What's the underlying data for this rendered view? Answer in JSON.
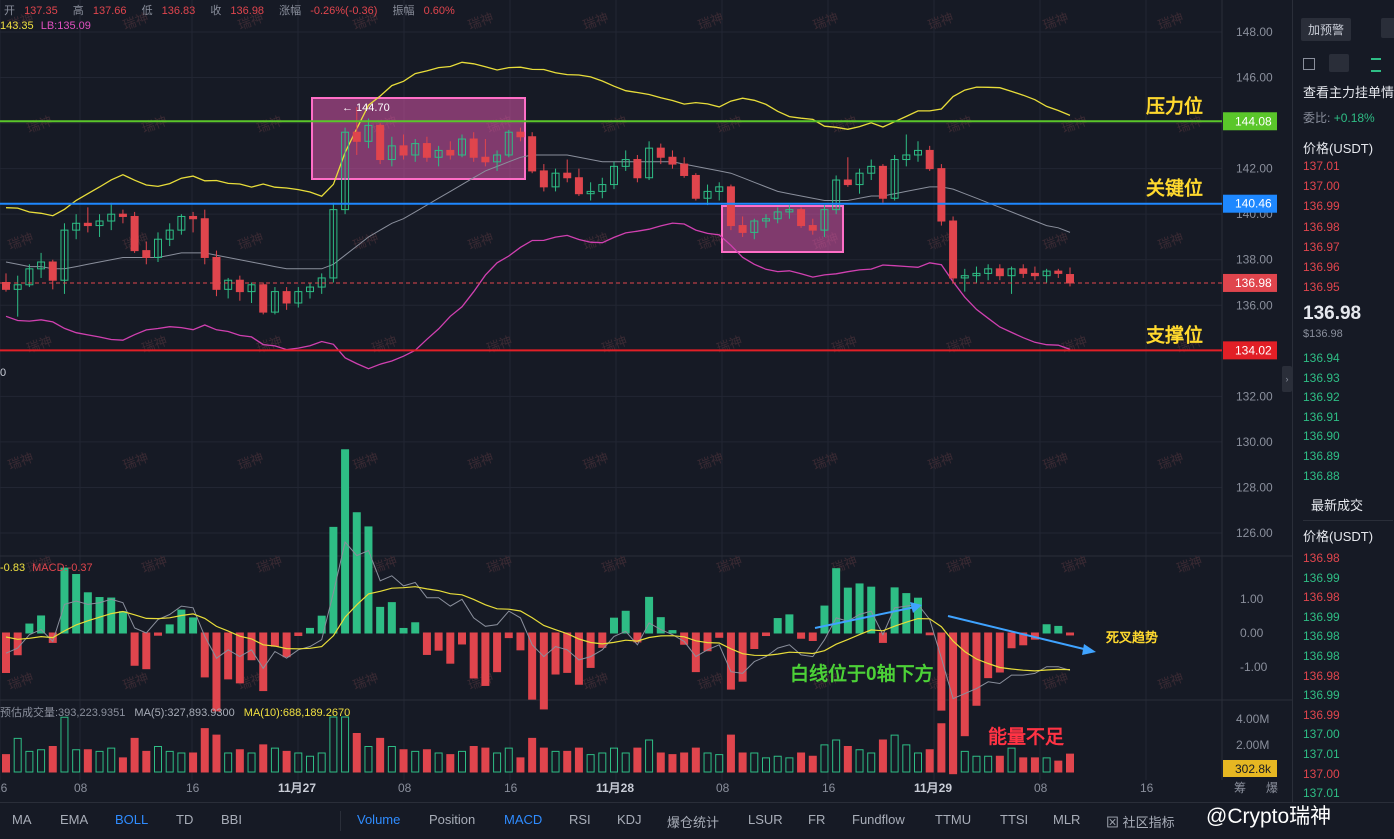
{
  "top_info": {
    "open_label": "开",
    "open": "137.35",
    "high_label": "高",
    "high": "137.66",
    "low_label": "低",
    "low": "136.83",
    "close_label": "收",
    "close": "136.98",
    "change_label": "涨幅",
    "change": "-0.26%(-0.36)",
    "amp_label": "振幅",
    "amp": "0.60%"
  },
  "boll_legend": {
    "ub": "143.35",
    "lb": "LB:135.09"
  },
  "macd_legend": {
    "dif": "-0.83",
    "macd": "MACD:-0.37"
  },
  "vol_legend": {
    "est": "预估成交量:393,223.9351",
    "ma5": "MA(5):327,893.9300",
    "ma10": "MA(10):688,189.2670"
  },
  "left_stub": "0",
  "chart_data": {
    "type": "candlestick",
    "price_axis": {
      "min": 126,
      "max": 148,
      "ticks": [
        "148.00",
        "146.00",
        "144.00",
        "142.00",
        "140.00",
        "138.00",
        "136.00",
        "132.00",
        "130.00",
        "128.00",
        "126.00"
      ]
    },
    "macd_axis": {
      "ticks": [
        "1.00",
        "0.00",
        "-1.00"
      ]
    },
    "volume_axis": {
      "ticks": [
        "4.00M",
        "2.00M"
      ]
    },
    "time_labels": [
      "16",
      "08",
      "16",
      "11月27",
      "08",
      "16",
      "11月28",
      "08",
      "16",
      "11月29",
      "08",
      "16"
    ],
    "levels": [
      {
        "name": "压力位",
        "value": 144.08,
        "label": "144.08",
        "color": "#5ac62a"
      },
      {
        "name": "关键位",
        "value": 140.46,
        "label": "140.46",
        "color": "#1e88ff"
      },
      {
        "name": "支撑位",
        "value": 134.02,
        "label": "134.02",
        "color": "#e21f26"
      }
    ],
    "current_price": {
      "value": 136.98,
      "label": "136.98"
    },
    "volume_current": "302.8k",
    "high_marker": "← 144.70",
    "annotations": {
      "death_cross": "死叉趋势",
      "white_line": "白线位于0轴下方",
      "low_energy": "能量不足"
    },
    "candles": [
      [
        137.0,
        137.4,
        136.6,
        136.7
      ],
      [
        136.7,
        137.3,
        135.5,
        136.9
      ],
      [
        136.9,
        137.8,
        136.8,
        137.6
      ],
      [
        137.6,
        138.3,
        137.2,
        137.9
      ],
      [
        137.9,
        138.0,
        136.7,
        137.1
      ],
      [
        137.1,
        139.6,
        136.5,
        139.3
      ],
      [
        139.3,
        140.0,
        138.9,
        139.6
      ],
      [
        139.6,
        140.3,
        139.2,
        139.5
      ],
      [
        139.5,
        140.0,
        139.0,
        139.7
      ],
      [
        139.7,
        140.5,
        139.3,
        140.0
      ],
      [
        140.0,
        140.2,
        139.6,
        139.9
      ],
      [
        139.9,
        140.1,
        138.3,
        138.4
      ],
      [
        138.4,
        138.8,
        137.8,
        138.1
      ],
      [
        138.1,
        139.2,
        137.9,
        138.9
      ],
      [
        138.9,
        139.6,
        138.6,
        139.3
      ],
      [
        139.3,
        140.0,
        139.1,
        139.9
      ],
      [
        139.9,
        140.1,
        139.2,
        139.8
      ],
      [
        139.8,
        140.2,
        137.8,
        138.1
      ],
      [
        138.1,
        138.4,
        136.4,
        136.7
      ],
      [
        136.7,
        137.2,
        136.3,
        137.1
      ],
      [
        137.1,
        137.3,
        136.2,
        136.6
      ],
      [
        136.6,
        137.0,
        136.1,
        136.9
      ],
      [
        136.9,
        137.0,
        135.6,
        135.7
      ],
      [
        135.7,
        136.8,
        135.6,
        136.6
      ],
      [
        136.6,
        136.8,
        135.8,
        136.1
      ],
      [
        136.1,
        136.8,
        135.9,
        136.6
      ],
      [
        136.6,
        137.0,
        136.3,
        136.8
      ],
      [
        136.8,
        137.4,
        136.5,
        137.2
      ],
      [
        137.2,
        140.5,
        137.0,
        140.2
      ],
      [
        140.2,
        143.8,
        140.0,
        143.6
      ],
      [
        143.6,
        144.7,
        142.6,
        143.2
      ],
      [
        143.2,
        144.2,
        142.9,
        143.9
      ],
      [
        143.9,
        144.0,
        142.2,
        142.4
      ],
      [
        142.4,
        143.4,
        142.1,
        143.0
      ],
      [
        143.0,
        143.5,
        142.4,
        142.6
      ],
      [
        142.6,
        143.3,
        142.3,
        143.1
      ],
      [
        143.1,
        143.4,
        142.3,
        142.5
      ],
      [
        142.5,
        143.0,
        142.1,
        142.8
      ],
      [
        142.8,
        143.2,
        142.4,
        142.6
      ],
      [
        142.6,
        143.5,
        142.5,
        143.3
      ],
      [
        143.3,
        143.6,
        142.3,
        142.5
      ],
      [
        142.5,
        143.3,
        142.1,
        142.3
      ],
      [
        142.3,
        142.8,
        141.9,
        142.6
      ],
      [
        142.6,
        143.7,
        142.5,
        143.6
      ],
      [
        143.6,
        143.8,
        143.2,
        143.4
      ],
      [
        143.4,
        143.6,
        141.8,
        141.9
      ],
      [
        141.9,
        142.2,
        141.0,
        141.2
      ],
      [
        141.2,
        142.0,
        141.0,
        141.8
      ],
      [
        141.8,
        142.4,
        141.4,
        141.6
      ],
      [
        141.6,
        142.0,
        140.8,
        140.9
      ],
      [
        140.9,
        141.4,
        140.6,
        141.0
      ],
      [
        141.0,
        141.6,
        140.7,
        141.3
      ],
      [
        141.3,
        142.3,
        141.1,
        142.1
      ],
      [
        142.1,
        142.8,
        141.9,
        142.4
      ],
      [
        142.4,
        142.6,
        141.4,
        141.6
      ],
      [
        141.6,
        143.2,
        141.5,
        142.9
      ],
      [
        142.9,
        143.1,
        142.2,
        142.5
      ],
      [
        142.5,
        142.8,
        142.0,
        142.2
      ],
      [
        142.2,
        142.5,
        141.6,
        141.7
      ],
      [
        141.7,
        141.8,
        140.6,
        140.7
      ],
      [
        140.7,
        141.3,
        140.4,
        141.0
      ],
      [
        141.0,
        141.4,
        140.6,
        141.2
      ],
      [
        141.2,
        141.3,
        139.3,
        139.5
      ],
      [
        139.5,
        139.9,
        139.0,
        139.2
      ],
      [
        139.2,
        139.8,
        138.9,
        139.7
      ],
      [
        139.7,
        140.0,
        139.4,
        139.8
      ],
      [
        139.8,
        140.3,
        139.6,
        140.1
      ],
      [
        140.1,
        140.4,
        139.8,
        140.2
      ],
      [
        140.2,
        140.3,
        139.4,
        139.5
      ],
      [
        139.5,
        139.8,
        139.1,
        139.3
      ],
      [
        139.3,
        140.4,
        139.0,
        140.2
      ],
      [
        140.2,
        141.7,
        140.0,
        141.5
      ],
      [
        141.5,
        142.5,
        141.2,
        141.3
      ],
      [
        141.3,
        142.0,
        140.9,
        141.8
      ],
      [
        141.8,
        142.4,
        141.5,
        142.1
      ],
      [
        142.1,
        142.2,
        140.5,
        140.7
      ],
      [
        140.7,
        142.6,
        140.6,
        142.4
      ],
      [
        142.4,
        143.5,
        142.1,
        142.6
      ],
      [
        142.6,
        143.2,
        142.3,
        142.8
      ],
      [
        142.8,
        143.0,
        141.9,
        142.0
      ],
      [
        142.0,
        142.2,
        139.5,
        139.7
      ],
      [
        139.7,
        139.9,
        137.0,
        137.2
      ],
      [
        137.2,
        137.6,
        136.6,
        137.3
      ],
      [
        137.3,
        137.7,
        137.0,
        137.4
      ],
      [
        137.4,
        137.8,
        137.1,
        137.6
      ],
      [
        137.6,
        137.8,
        137.1,
        137.3
      ],
      [
        137.3,
        137.7,
        136.5,
        137.6
      ],
      [
        137.6,
        137.8,
        137.2,
        137.4
      ],
      [
        137.4,
        137.7,
        137.1,
        137.3
      ],
      [
        137.3,
        137.6,
        137.0,
        137.5
      ],
      [
        137.5,
        137.6,
        137.2,
        137.4
      ],
      [
        137.35,
        137.66,
        136.83,
        136.98
      ]
    ],
    "boll_mid": [
      137.9,
      137.8,
      137.7,
      137.7,
      137.6,
      137.6,
      137.7,
      137.8,
      137.9,
      138.0,
      138.1,
      138.1,
      138.1,
      138.1,
      138.2,
      138.3,
      138.3,
      138.3,
      138.2,
      138.1,
      138.0,
      137.9,
      137.8,
      137.7,
      137.6,
      137.6,
      137.6,
      137.6,
      137.8,
      138.2,
      138.6,
      139.0,
      139.3,
      139.6,
      139.8,
      140.1,
      140.4,
      140.7,
      141.0,
      141.3,
      141.6,
      141.9,
      142.1,
      142.3,
      142.5,
      142.6,
      142.6,
      142.6,
      142.6,
      142.5,
      142.4,
      142.3,
      142.3,
      142.3,
      142.3,
      142.3,
      142.3,
      142.3,
      142.2,
      142.1,
      142.0,
      141.9,
      141.8,
      141.6,
      141.4,
      141.2,
      141.0,
      140.9,
      140.8,
      140.7,
      140.6,
      140.6,
      140.6,
      140.7,
      140.8,
      140.8,
      140.9,
      141.0,
      141.1,
      141.2,
      141.2,
      141.1,
      140.9,
      140.7,
      140.5,
      140.3,
      140.1,
      139.9,
      139.7,
      139.5,
      139.4,
      139.2
    ]
  },
  "right_panel": {
    "add_alert": "加预警",
    "depth_title": "查看主力挂单情",
    "ratio_label": "委比:",
    "ratio_value": "+0.18%",
    "price_header": "价格(USDT)",
    "asks": [
      "137.01",
      "137.00",
      "136.99",
      "136.98",
      "136.97",
      "136.96",
      "136.95"
    ],
    "last_price": "136.98",
    "last_price_usd": "$136.98",
    "bids": [
      "136.94",
      "136.93",
      "136.92",
      "136.91",
      "136.90",
      "136.89",
      "136.88"
    ],
    "trades_title": "最新成交",
    "trades_header": "价格(USDT)",
    "trades": [
      {
        "p": "136.98",
        "c": "red"
      },
      {
        "p": "136.99",
        "c": "green"
      },
      {
        "p": "136.98",
        "c": "red"
      },
      {
        "p": "136.99",
        "c": "green"
      },
      {
        "p": "136.98",
        "c": "green"
      },
      {
        "p": "136.98",
        "c": "green"
      },
      {
        "p": "136.98",
        "c": "red"
      },
      {
        "p": "136.99",
        "c": "green"
      },
      {
        "p": "136.99",
        "c": "red"
      },
      {
        "p": "137.00",
        "c": "green"
      },
      {
        "p": "137.01",
        "c": "green"
      },
      {
        "p": "137.00",
        "c": "red"
      },
      {
        "p": "137.01",
        "c": "green"
      }
    ]
  },
  "bottom_tabs_left": [
    "MA",
    "EMA",
    "BOLL",
    "TD",
    "BBI"
  ],
  "bottom_tabs_right": [
    "Volume",
    "Position",
    "MACD",
    "RSI",
    "KDJ",
    "爆仓统计",
    "LSUR",
    "FR",
    "Fundflow",
    "TTMU",
    "TTSI",
    "MLR"
  ],
  "community": "社区指标",
  "credit": "@Crypto瑞神",
  "chip_labels": [
    "筹",
    "爆"
  ],
  "watermark": "瑞神",
  "colors": {
    "up": "#2ebd85",
    "down": "#e0454d",
    "bg": "#161a25"
  }
}
